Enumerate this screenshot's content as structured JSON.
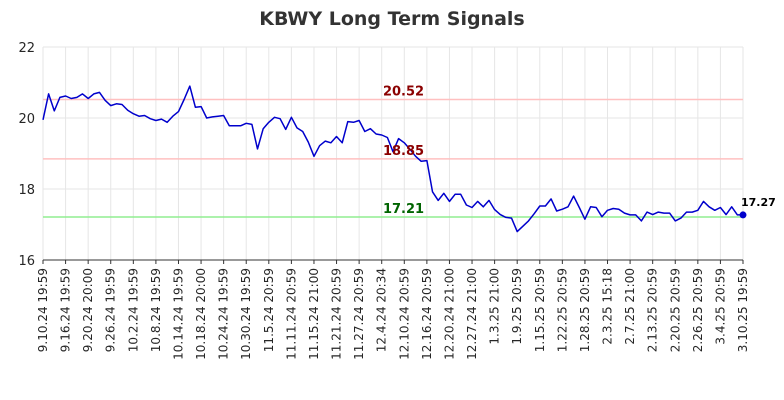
{
  "chart_data": {
    "type": "line",
    "title": "KBWY Long Term Signals",
    "ylim": [
      16,
      22
    ],
    "yticks": [
      "16",
      "18",
      "20",
      "22"
    ],
    "grid": true,
    "x_tick_labels": [
      "9.10.24 19:59",
      "9.16.24 19:59",
      "9.20.24 20:00",
      "9.26.24 19:59",
      "10.2.24 19:59",
      "10.8.24 19:59",
      "10.14.24 19:59",
      "10.18.24 20:00",
      "10.24.24 19:59",
      "10.30.24 19:59",
      "11.5.24 20:59",
      "11.11.24 20:59",
      "11.15.24 21:00",
      "11.21.24 20:59",
      "11.27.24 20:59",
      "12.4.24 20:34",
      "12.10.24 20:59",
      "12.16.24 20:59",
      "12.20.24 21:00",
      "12.27.24 21:00",
      "1.3.25 21:00",
      "1.9.25 20:59",
      "1.15.25 20:59",
      "1.22.25 20:59",
      "1.28.25 20:59",
      "2.3.25 15:18",
      "2.7.25 21:00",
      "2.13.25 20:59",
      "2.20.25 20:59",
      "2.26.25 20:59",
      "3.4.25 20:59",
      "3.10.25 19:59"
    ],
    "series": [
      {
        "color": "#0000cc",
        "values": [
          19.95,
          20.68,
          20.2,
          20.58,
          20.62,
          20.55,
          20.58,
          20.68,
          20.55,
          20.68,
          20.72,
          20.5,
          20.35,
          20.4,
          20.38,
          20.22,
          20.12,
          20.05,
          20.07,
          19.98,
          19.93,
          19.97,
          19.88,
          20.05,
          20.18,
          20.52,
          20.9,
          20.3,
          20.32,
          20.0,
          20.03,
          20.05,
          20.07,
          19.78,
          19.78,
          19.78,
          19.85,
          19.82,
          19.13,
          19.7,
          19.88,
          20.02,
          19.98,
          19.68,
          20.02,
          19.72,
          19.62,
          19.32,
          18.92,
          19.22,
          19.35,
          19.3,
          19.48,
          19.3,
          19.9,
          19.88,
          19.93,
          19.62,
          19.7,
          19.55,
          19.52,
          19.45,
          19.05,
          19.42,
          19.3,
          19.12,
          18.92,
          18.78,
          18.8,
          17.92,
          17.68,
          17.88,
          17.65,
          17.85,
          17.85,
          17.55,
          17.48,
          17.65,
          17.5,
          17.68,
          17.42,
          17.28,
          17.2,
          17.18,
          16.8,
          16.95,
          17.1,
          17.3,
          17.52,
          17.52,
          17.72,
          17.38,
          17.43,
          17.5,
          17.8,
          17.48,
          17.15,
          17.5,
          17.48,
          17.22,
          17.4,
          17.45,
          17.43,
          17.32,
          17.27,
          17.27,
          17.1,
          17.35,
          17.28,
          17.35,
          17.32,
          17.32,
          17.1,
          17.18,
          17.35,
          17.35,
          17.4,
          17.65,
          17.5,
          17.4,
          17.48,
          17.28,
          17.5,
          17.27,
          17.27
        ]
      }
    ],
    "horizontal_lines": [
      {
        "value": 20.52,
        "label": "20.52",
        "line_color": "#ffc0c0",
        "text_color": "#8b0000"
      },
      {
        "value": 18.85,
        "label": "18.85",
        "line_color": "#ffc0c0",
        "text_color": "#8b0000"
      },
      {
        "value": 17.21,
        "label": "17.21",
        "line_color": "#90ee90",
        "text_color": "#006400"
      }
    ],
    "last_value_label": "17.27"
  }
}
